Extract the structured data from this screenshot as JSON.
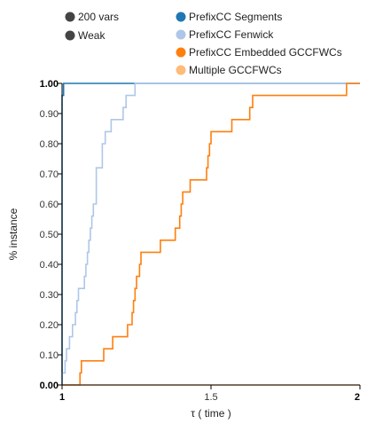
{
  "legend": [
    {
      "label": "200 vars",
      "color": "#444444",
      "icon": "filled-circle"
    },
    {
      "label": "Weak",
      "color": "#444444",
      "icon": "filled-circle"
    },
    {
      "label": "PrefixCC Segments",
      "color": "#1f77b4",
      "icon": "filled-circle"
    },
    {
      "label": "PrefixCC Fenwick",
      "color": "#aec7e8",
      "icon": "filled-circle"
    },
    {
      "label": "PrefixCC Embedded GCCFWCs",
      "color": "#ff7f0e",
      "icon": "filled-circle"
    },
    {
      "label": "Multiple GCCFWCs",
      "color": "#ffbb78",
      "icon": "filled-circle"
    }
  ],
  "chart_data": {
    "type": "line",
    "step": true,
    "xlabel": "τ ( time )",
    "ylabel": "% instance",
    "xlim": [
      1,
      2
    ],
    "ylim": [
      0,
      1
    ],
    "x_ticks": [
      "1",
      "1.5",
      "2"
    ],
    "y_ticks": [
      "0.00",
      "0.10",
      "0.20",
      "0.30",
      "0.40",
      "0.50",
      "0.60",
      "0.70",
      "0.80",
      "0.90",
      "1.00"
    ],
    "grid": false,
    "series": [
      {
        "name": "PrefixCC Segments",
        "color": "#1f77b4",
        "points": [
          [
            1.0,
            0.0
          ],
          [
            1.0,
            0.96
          ],
          [
            1.005,
            0.96
          ],
          [
            1.005,
            1.0
          ],
          [
            2.0,
            1.0
          ]
        ]
      },
      {
        "name": "PrefixCC Fenwick",
        "color": "#aec7e8",
        "points": [
          [
            1.0,
            0.0
          ],
          [
            1.0,
            0.04
          ],
          [
            1.01,
            0.04
          ],
          [
            1.01,
            0.08
          ],
          [
            1.015,
            0.08
          ],
          [
            1.015,
            0.12
          ],
          [
            1.025,
            0.12
          ],
          [
            1.025,
            0.16
          ],
          [
            1.035,
            0.16
          ],
          [
            1.035,
            0.2
          ],
          [
            1.045,
            0.2
          ],
          [
            1.045,
            0.24
          ],
          [
            1.05,
            0.24
          ],
          [
            1.05,
            0.28
          ],
          [
            1.055,
            0.28
          ],
          [
            1.055,
            0.32
          ],
          [
            1.075,
            0.32
          ],
          [
            1.075,
            0.36
          ],
          [
            1.08,
            0.36
          ],
          [
            1.08,
            0.4
          ],
          [
            1.085,
            0.4
          ],
          [
            1.085,
            0.44
          ],
          [
            1.09,
            0.44
          ],
          [
            1.09,
            0.48
          ],
          [
            1.095,
            0.48
          ],
          [
            1.095,
            0.52
          ],
          [
            1.1,
            0.52
          ],
          [
            1.1,
            0.56
          ],
          [
            1.105,
            0.56
          ],
          [
            1.105,
            0.6
          ],
          [
            1.115,
            0.6
          ],
          [
            1.115,
            0.72
          ],
          [
            1.135,
            0.72
          ],
          [
            1.135,
            0.8
          ],
          [
            1.145,
            0.8
          ],
          [
            1.145,
            0.84
          ],
          [
            1.165,
            0.84
          ],
          [
            1.165,
            0.88
          ],
          [
            1.205,
            0.88
          ],
          [
            1.205,
            0.92
          ],
          [
            1.215,
            0.92
          ],
          [
            1.215,
            0.96
          ],
          [
            1.245,
            0.96
          ],
          [
            1.245,
            1.0
          ],
          [
            2.0,
            1.0
          ]
        ]
      },
      {
        "name": "PrefixCC Embedded GCCFWCs",
        "color": "#ff7f0e",
        "points": [
          [
            1.0,
            0.0
          ],
          [
            1.06,
            0.0
          ],
          [
            1.06,
            0.04
          ],
          [
            1.065,
            0.04
          ],
          [
            1.065,
            0.08
          ],
          [
            1.14,
            0.08
          ],
          [
            1.14,
            0.12
          ],
          [
            1.17,
            0.12
          ],
          [
            1.17,
            0.16
          ],
          [
            1.22,
            0.16
          ],
          [
            1.22,
            0.2
          ],
          [
            1.235,
            0.2
          ],
          [
            1.235,
            0.24
          ],
          [
            1.24,
            0.24
          ],
          [
            1.24,
            0.28
          ],
          [
            1.245,
            0.28
          ],
          [
            1.245,
            0.32
          ],
          [
            1.25,
            0.32
          ],
          [
            1.25,
            0.36
          ],
          [
            1.26,
            0.36
          ],
          [
            1.26,
            0.4
          ],
          [
            1.265,
            0.4
          ],
          [
            1.265,
            0.44
          ],
          [
            1.33,
            0.44
          ],
          [
            1.33,
            0.48
          ],
          [
            1.38,
            0.48
          ],
          [
            1.38,
            0.52
          ],
          [
            1.395,
            0.52
          ],
          [
            1.395,
            0.56
          ],
          [
            1.4,
            0.56
          ],
          [
            1.4,
            0.6
          ],
          [
            1.405,
            0.6
          ],
          [
            1.405,
            0.64
          ],
          [
            1.43,
            0.64
          ],
          [
            1.43,
            0.68
          ],
          [
            1.485,
            0.68
          ],
          [
            1.485,
            0.72
          ],
          [
            1.49,
            0.72
          ],
          [
            1.49,
            0.76
          ],
          [
            1.495,
            0.76
          ],
          [
            1.495,
            0.8
          ],
          [
            1.5,
            0.8
          ],
          [
            1.5,
            0.84
          ],
          [
            1.57,
            0.84
          ],
          [
            1.57,
            0.88
          ],
          [
            1.63,
            0.88
          ],
          [
            1.63,
            0.92
          ],
          [
            1.64,
            0.92
          ],
          [
            1.64,
            0.96
          ],
          [
            1.955,
            0.96
          ],
          [
            1.955,
            1.0
          ],
          [
            2.0,
            1.0
          ]
        ]
      },
      {
        "name": "Multiple GCCFWCs",
        "color": "#ffbb78",
        "points": [
          [
            1.0,
            0.0
          ],
          [
            2.0,
            0.0
          ]
        ]
      }
    ]
  }
}
